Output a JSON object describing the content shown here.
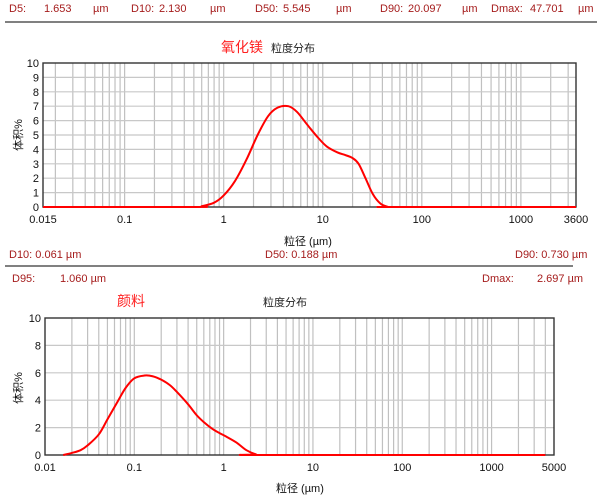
{
  "chart1_stats": {
    "d5_label": "D5:",
    "d5_value": "1.653",
    "d5_unit": "µm",
    "d10_label": "D10:",
    "d10_value": "2.130",
    "d10_unit": "µm",
    "d50_label": "D50:",
    "d50_value": "5.545",
    "d50_unit": "µm",
    "d90_label": "D90:",
    "d90_value": "20.097",
    "d90_unit": "µm",
    "dmax_label": "Dmax:",
    "dmax_value": "47.701",
    "dmax_unit": "µm"
  },
  "chart2_stats": {
    "d10": "D10: 0.061  µm",
    "d50": "D50: 0.188  µm",
    "d90": "D90: 0.730  µm",
    "d95_label": "D95:",
    "d95_value": "1.060  µm",
    "dmax_label": "Dmax:",
    "dmax_value": "2.697  µm"
  },
  "colors": {
    "curve": "#ff0000",
    "stats": "#a51c1c",
    "title_red": "#ff2020",
    "grid": "#c0c0c0"
  },
  "chart_data": [
    {
      "type": "line",
      "title": "氧化镁",
      "subtitle": "粒度分布",
      "xlabel": "粒径 (µm)",
      "ylabel": "体积%",
      "xscale": "log",
      "xlim": [
        0.015,
        3600
      ],
      "ylim": [
        0,
        10
      ],
      "x_tick_labels": [
        "0.015",
        "0.1",
        "1",
        "10",
        "100",
        "1000",
        "3600"
      ],
      "x_ticks": [
        0.015,
        0.1,
        1,
        10,
        100,
        1000,
        3600
      ],
      "y_ticks": [
        0,
        1,
        2,
        3,
        4,
        5,
        6,
        7,
        8,
        9,
        10
      ],
      "grid": true,
      "legend": null,
      "series": [
        {
          "name": "氧化镁",
          "x": [
            0.015,
            0.5,
            0.6,
            0.8,
            1.0,
            1.3,
            1.7,
            2.2,
            2.8,
            3.5,
            4.5,
            5.5,
            7.0,
            9.0,
            11.0,
            14.0,
            17.0,
            20.0,
            23.0,
            27.0,
            32.0,
            38.0,
            45.0,
            50.0,
            3600
          ],
          "y": [
            0,
            0,
            0.05,
            0.3,
            0.8,
            1.8,
            3.3,
            5.0,
            6.3,
            6.9,
            7.0,
            6.6,
            5.7,
            4.8,
            4.2,
            3.8,
            3.6,
            3.4,
            3.0,
            2.0,
            0.9,
            0.25,
            0.02,
            0,
            0
          ]
        }
      ]
    },
    {
      "type": "line",
      "title": "颜料",
      "subtitle": "粒度分布",
      "xlabel": "粒径 (µm)",
      "ylabel": "体积%",
      "xscale": "log",
      "xlim": [
        0.01,
        5000
      ],
      "ylim": [
        0,
        10
      ],
      "x_tick_labels": [
        "0.01",
        "0.1",
        "1",
        "10",
        "100",
        "1000",
        "5000"
      ],
      "x_ticks": [
        0.01,
        0.1,
        1,
        10,
        100,
        1000,
        5000
      ],
      "y_ticks": [
        0,
        2,
        4,
        6,
        8,
        10
      ],
      "grid": true,
      "legend": null,
      "series": [
        {
          "name": "颜料",
          "x": [
            0.016,
            0.02,
            0.025,
            0.03,
            0.04,
            0.05,
            0.065,
            0.08,
            0.1,
            0.13,
            0.16,
            0.2,
            0.25,
            0.3,
            0.4,
            0.5,
            0.6,
            0.75,
            0.9,
            1.1,
            1.4,
            1.8,
            2.3,
            2.7,
            4000
          ],
          "y": [
            0,
            0.15,
            0.35,
            0.7,
            1.5,
            2.6,
            3.9,
            4.9,
            5.6,
            5.8,
            5.75,
            5.5,
            5.1,
            4.6,
            3.7,
            2.9,
            2.4,
            1.9,
            1.6,
            1.3,
            0.9,
            0.35,
            0.05,
            0,
            0
          ]
        }
      ]
    }
  ]
}
